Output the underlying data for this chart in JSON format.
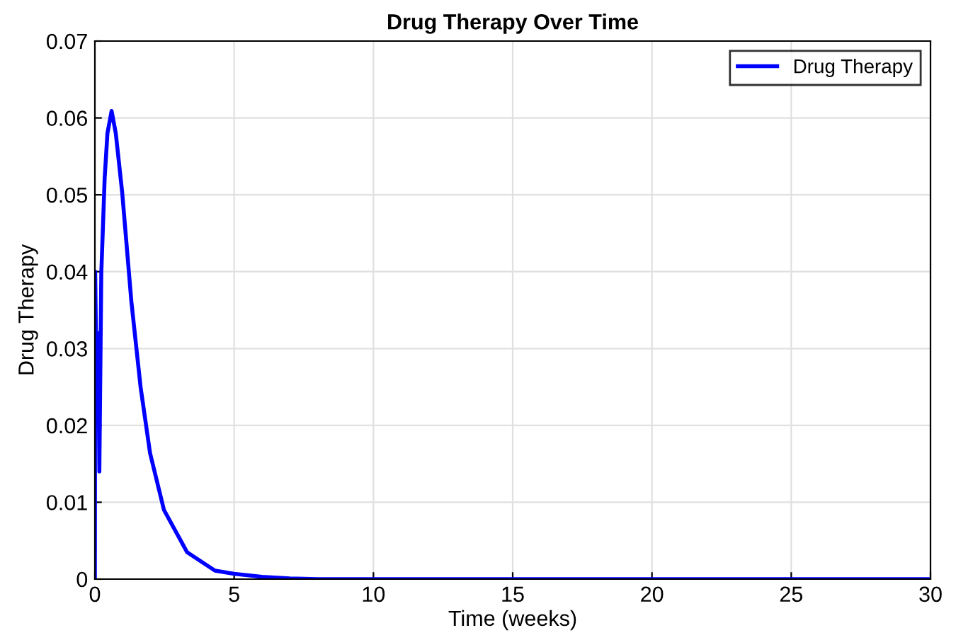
{
  "chart_data": {
    "type": "line",
    "title": "Drug Therapy Over Time",
    "xlabel": "Time (weeks)",
    "ylabel": "Drug Therapy",
    "series": [
      {
        "name": "Drug Therapy",
        "color": "#0000ff",
        "x": [
          0,
          0.01,
          0.08,
          0.12,
          0.16,
          0.23,
          0.35,
          0.45,
          0.6,
          0.75,
          0.98,
          1.31,
          1.64,
          1.98,
          2.48,
          3.31,
          4.31,
          5,
          6,
          7,
          8,
          10,
          15,
          20,
          25,
          30
        ],
        "values": [
          0,
          0.04,
          0.02,
          0.032,
          0.014,
          0.0398,
          0.0521,
          0.058,
          0.0609,
          0.058,
          0.0503,
          0.0361,
          0.025,
          0.0164,
          0.009,
          0.0035,
          0.0011,
          0.0007,
          0.0003,
          0.0001,
          0,
          0,
          0,
          0,
          0,
          0
        ]
      }
    ],
    "xlim": [
      0,
      30
    ],
    "xticks": [
      0,
      5,
      10,
      15,
      20,
      25,
      30
    ],
    "ylim": [
      0,
      0.07
    ],
    "yticks": [
      0,
      0.01,
      0.02,
      0.03,
      0.04,
      0.05,
      0.06,
      0.07
    ],
    "grid": true,
    "legend": "top right",
    "line_style": "solid",
    "marker": "none"
  }
}
